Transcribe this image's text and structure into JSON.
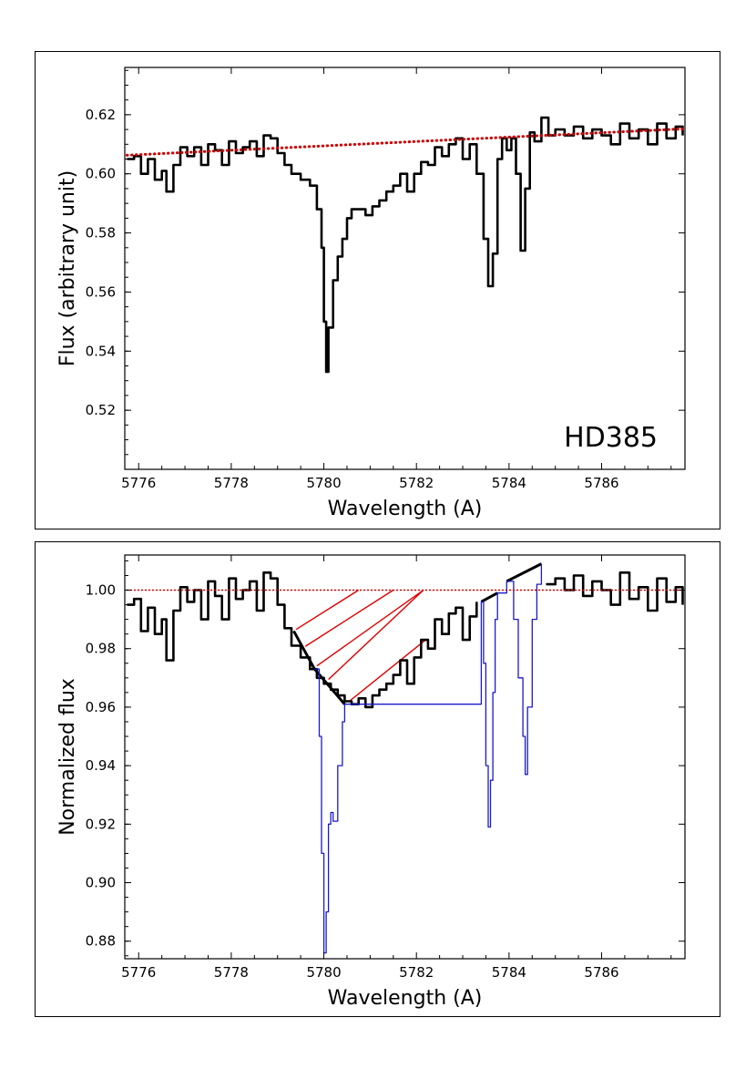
{
  "chart_data": [
    {
      "type": "line",
      "xlabel": "Wavelength (A)",
      "ylabel": "Flux (arbitrary unit)",
      "annotation": "HD385",
      "xlim": [
        5775.7,
        5787.8
      ],
      "ylim": [
        0.5,
        0.636
      ],
      "xticks": [
        5776,
        5778,
        5780,
        5782,
        5784,
        5786
      ],
      "yticks": [
        0.52,
        0.54,
        0.56,
        0.58,
        0.6,
        0.62
      ],
      "xtick_labels": [
        "5776",
        "5778",
        "5780",
        "5782",
        "5784",
        "5786"
      ],
      "ytick_labels": [
        "0.52",
        "0.54",
        "0.56",
        "0.58",
        "0.60",
        "0.62"
      ],
      "grid": false,
      "series": [
        {
          "role": "spectrum",
          "color": "#000000",
          "x": [
            5775.75,
            5775.9,
            5776.05,
            5776.2,
            5776.35,
            5776.5,
            5776.6,
            5776.75,
            5776.9,
            5777.05,
            5777.2,
            5777.35,
            5777.5,
            5777.65,
            5777.8,
            5777.95,
            5778.1,
            5778.25,
            5778.4,
            5778.55,
            5778.7,
            5778.85,
            5779.0,
            5779.15,
            5779.3,
            5779.5,
            5779.7,
            5779.85,
            5779.95,
            5780.0,
            5780.05,
            5780.1,
            5780.2,
            5780.3,
            5780.4,
            5780.5,
            5780.6,
            5780.75,
            5780.9,
            5781.05,
            5781.2,
            5781.35,
            5781.5,
            5781.65,
            5781.8,
            5781.95,
            5782.1,
            5782.25,
            5782.4,
            5782.55,
            5782.7,
            5782.85,
            5783.0,
            5783.15,
            5783.3,
            5783.45,
            5783.55,
            5783.65,
            5783.75,
            5783.85,
            5783.95,
            5784.05,
            5784.15,
            5784.25,
            5784.35,
            5784.45,
            5784.55,
            5784.7,
            5784.85,
            5785.0,
            5785.2,
            5785.4,
            5785.6,
            5785.8,
            5786.0,
            5786.2,
            5786.4,
            5786.6,
            5786.8,
            5787.0,
            5787.2,
            5787.4,
            5787.6,
            5787.75
          ],
          "y": [
            0.605,
            0.606,
            0.6,
            0.605,
            0.598,
            0.601,
            0.594,
            0.603,
            0.609,
            0.606,
            0.609,
            0.603,
            0.61,
            0.608,
            0.603,
            0.611,
            0.607,
            0.609,
            0.611,
            0.606,
            0.613,
            0.612,
            0.607,
            0.603,
            0.6,
            0.598,
            0.596,
            0.588,
            0.575,
            0.55,
            0.533,
            0.548,
            0.564,
            0.572,
            0.578,
            0.585,
            0.588,
            0.588,
            0.586,
            0.589,
            0.591,
            0.594,
            0.596,
            0.6,
            0.594,
            0.6,
            0.604,
            0.603,
            0.609,
            0.606,
            0.61,
            0.612,
            0.605,
            0.61,
            0.6,
            0.578,
            0.562,
            0.573,
            0.605,
            0.612,
            0.608,
            0.612,
            0.6,
            0.574,
            0.595,
            0.614,
            0.611,
            0.619,
            0.613,
            0.615,
            0.613,
            0.616,
            0.612,
            0.615,
            0.613,
            0.61,
            0.617,
            0.612,
            0.615,
            0.61,
            0.617,
            0.612,
            0.616,
            0.613
          ]
        },
        {
          "role": "continuum",
          "color": "#cc0000",
          "style": "dotted",
          "x": [
            5775.75,
            5787.75
          ],
          "y": [
            0.6063,
            0.6152
          ]
        }
      ]
    },
    {
      "type": "line",
      "xlabel": "Wavelength (A)",
      "ylabel": "Normalized flux",
      "xlim": [
        5775.7,
        5787.8
      ],
      "ylim": [
        0.874,
        1.012
      ],
      "xticks": [
        5776,
        5778,
        5780,
        5782,
        5784,
        5786
      ],
      "yticks": [
        0.88,
        0.9,
        0.92,
        0.94,
        0.96,
        0.98,
        1.0
      ],
      "xtick_labels": [
        "5776",
        "5778",
        "5780",
        "5782",
        "5784",
        "5786"
      ],
      "ytick_labels": [
        "0.88",
        "0.90",
        "0.92",
        "0.94",
        "0.96",
        "0.98",
        "1.00"
      ],
      "grid": false,
      "series": [
        {
          "role": "normalized-spectrum",
          "color": "#000000",
          "x": [
            5775.75,
            5775.9,
            5776.05,
            5776.2,
            5776.35,
            5776.5,
            5776.6,
            5776.75,
            5776.9,
            5777.05,
            5777.2,
            5777.35,
            5777.5,
            5777.65,
            5777.8,
            5777.95,
            5778.1,
            5778.25,
            5778.4,
            5778.55,
            5778.7,
            5778.85,
            5779.0,
            5779.15,
            5779.3,
            5779.5,
            5779.7,
            5779.85,
            5780.0,
            5780.15,
            5780.3,
            5780.45,
            5780.6,
            5780.75,
            5780.9,
            5781.05,
            5781.2,
            5781.35,
            5781.5,
            5781.65,
            5781.8,
            5781.95,
            5782.1,
            5782.25,
            5782.4,
            5782.55,
            5782.7,
            5782.85,
            5783.0,
            5783.15,
            5783.3
          ],
          "y": [
            0.995,
            0.997,
            0.986,
            0.994,
            0.985,
            0.99,
            0.976,
            0.993,
            1.001,
            0.996,
            1.0,
            0.99,
            1.003,
            0.998,
            0.99,
            1.004,
            0.997,
            1.0,
            1.003,
            0.993,
            1.006,
            1.004,
            0.995,
            0.987,
            0.981,
            0.977,
            0.973,
            0.97,
            0.968,
            0.966,
            0.964,
            0.962,
            0.961,
            0.963,
            0.96,
            0.964,
            0.966,
            0.968,
            0.971,
            0.976,
            0.968,
            0.977,
            0.983,
            0.98,
            0.99,
            0.985,
            0.992,
            0.994,
            0.983,
            0.991,
            0.996
          ]
        },
        {
          "role": "normalized-spectrum-red",
          "color": "#000000",
          "x": [
            5784.8,
            5785.0,
            5785.2,
            5785.4,
            5785.6,
            5785.8,
            5786.0,
            5786.2,
            5786.4,
            5786.6,
            5786.8,
            5787.0,
            5787.2,
            5787.4,
            5787.6,
            5787.75
          ],
          "y": [
            1.002,
            1.004,
            1.0,
            1.005,
            0.998,
            1.003,
            1.0,
            0.995,
            1.006,
            0.997,
            1.001,
            0.993,
            1.004,
            0.996,
            1.001,
            0.995
          ]
        },
        {
          "role": "local-continuum",
          "color": "#000000",
          "x": [
            5779.35,
            5779.8,
            5780.45,
            5783.4,
            5783.75,
            5783.95,
            5784.7
          ],
          "y": [
            0.986,
            0.973,
            0.961,
            0.996,
            0.999,
            1.003,
            1.009
          ]
        },
        {
          "role": "narrow-features",
          "color": "#1a1acc",
          "x": [
            5779.8,
            5779.9,
            5779.95,
            5780.0,
            5780.05,
            5780.1,
            5780.15,
            5780.2,
            5780.3,
            5780.4,
            5780.45,
            5783.4,
            5783.45,
            5783.5,
            5783.55,
            5783.6,
            5783.65,
            5783.7,
            5783.75,
            5783.95,
            5784.1,
            5784.2,
            5784.3,
            5784.35,
            5784.4,
            5784.5,
            5784.6,
            5784.7
          ],
          "y": [
            0.973,
            0.95,
            0.91,
            0.876,
            0.89,
            0.92,
            0.924,
            0.921,
            0.94,
            0.955,
            0.961,
            0.996,
            0.975,
            0.94,
            0.919,
            0.935,
            0.965,
            0.99,
            0.999,
            1.003,
            0.99,
            0.97,
            0.95,
            0.937,
            0.96,
            0.99,
            1.002,
            1.009
          ]
        },
        {
          "role": "unity-level",
          "color": "#cc0000",
          "style": "dotted",
          "x": [
            5775.75,
            5787.75
          ],
          "y": [
            1.0,
            1.0
          ]
        }
      ],
      "hatch": {
        "color": "#dd0000",
        "x_start": 5779.35,
        "x_end": 5782.15,
        "top": 1.0
      }
    }
  ]
}
